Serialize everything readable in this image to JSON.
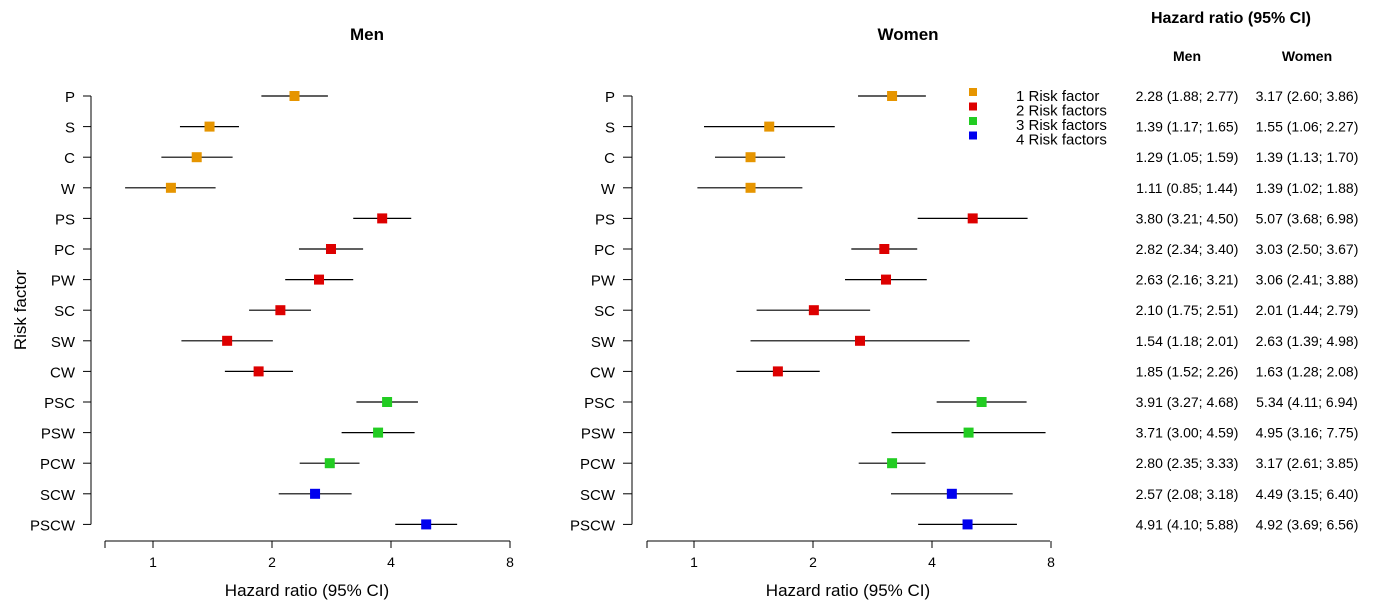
{
  "chart_data": {
    "type": "forest",
    "ylabel": "Risk factor",
    "xlabel": "Hazard ratio (95% CI)",
    "x_scale": "log",
    "x_ticks": [
      1,
      2,
      4,
      8
    ],
    "x_tick_labels": [
      "1",
      "2",
      "4",
      "8"
    ],
    "xlim": [
      0.6,
      8
    ],
    "categories": [
      "P",
      "S",
      "C",
      "W",
      "PS",
      "PC",
      "PW",
      "SC",
      "SW",
      "CW",
      "PSC",
      "PSW",
      "PCW",
      "SCW",
      "PSCW"
    ],
    "group_index": [
      0,
      0,
      0,
      0,
      1,
      1,
      1,
      1,
      1,
      1,
      2,
      2,
      2,
      3,
      3
    ],
    "legend": {
      "position": "top-right of Women panel",
      "entries": [
        {
          "label": "1 Risk factor",
          "color": "#E69500"
        },
        {
          "label": "2 Risk factors",
          "color": "#DD0000"
        },
        {
          "label": "3 Risk factors",
          "color": "#22CC22"
        },
        {
          "label": "4 Risk factors",
          "color": "#0000EE"
        }
      ]
    },
    "panels": [
      {
        "title": "Men",
        "rows": [
          {
            "hr": 2.28,
            "lo": 1.88,
            "hi": 2.77
          },
          {
            "hr": 1.39,
            "lo": 1.17,
            "hi": 1.65
          },
          {
            "hr": 1.29,
            "lo": 1.05,
            "hi": 1.59
          },
          {
            "hr": 1.11,
            "lo": 0.85,
            "hi": 1.44
          },
          {
            "hr": 3.8,
            "lo": 3.21,
            "hi": 4.5
          },
          {
            "hr": 2.82,
            "lo": 2.34,
            "hi": 3.4
          },
          {
            "hr": 2.63,
            "lo": 2.16,
            "hi": 3.21
          },
          {
            "hr": 2.1,
            "lo": 1.75,
            "hi": 2.51
          },
          {
            "hr": 1.54,
            "lo": 1.18,
            "hi": 2.01
          },
          {
            "hr": 1.85,
            "lo": 1.52,
            "hi": 2.26
          },
          {
            "hr": 3.91,
            "lo": 3.27,
            "hi": 4.68
          },
          {
            "hr": 3.71,
            "lo": 3.0,
            "hi": 4.59
          },
          {
            "hr": 2.8,
            "lo": 2.35,
            "hi": 3.33
          },
          {
            "hr": 2.57,
            "lo": 2.08,
            "hi": 3.18
          },
          {
            "hr": 4.91,
            "lo": 4.1,
            "hi": 5.88
          }
        ]
      },
      {
        "title": "Women",
        "rows": [
          {
            "hr": 3.17,
            "lo": 2.6,
            "hi": 3.86
          },
          {
            "hr": 1.55,
            "lo": 1.06,
            "hi": 2.27
          },
          {
            "hr": 1.39,
            "lo": 1.13,
            "hi": 1.7
          },
          {
            "hr": 1.39,
            "lo": 1.02,
            "hi": 1.88
          },
          {
            "hr": 5.07,
            "lo": 3.68,
            "hi": 6.98
          },
          {
            "hr": 3.03,
            "lo": 2.5,
            "hi": 3.67
          },
          {
            "hr": 3.06,
            "lo": 2.41,
            "hi": 3.88
          },
          {
            "hr": 2.01,
            "lo": 1.44,
            "hi": 2.79
          },
          {
            "hr": 2.63,
            "lo": 1.39,
            "hi": 4.98
          },
          {
            "hr": 1.63,
            "lo": 1.28,
            "hi": 2.08
          },
          {
            "hr": 5.34,
            "lo": 4.11,
            "hi": 6.94
          },
          {
            "hr": 4.95,
            "lo": 3.16,
            "hi": 7.75
          },
          {
            "hr": 3.17,
            "lo": 2.61,
            "hi": 3.85
          },
          {
            "hr": 4.49,
            "lo": 3.15,
            "hi": 6.4
          },
          {
            "hr": 4.92,
            "lo": 3.69,
            "hi": 6.56
          }
        ]
      }
    ],
    "table": {
      "title": "Hazard ratio (95% CI)",
      "columns": [
        "Men",
        "Women"
      ],
      "rows": [
        [
          "2.28 (1.88; 2.77)",
          "3.17 (2.60; 3.86)"
        ],
        [
          "1.39 (1.17; 1.65)",
          "1.55 (1.06; 2.27)"
        ],
        [
          "1.29 (1.05; 1.59)",
          "1.39 (1.13; 1.70)"
        ],
        [
          "1.11 (0.85; 1.44)",
          "1.39 (1.02; 1.88)"
        ],
        [
          "3.80 (3.21; 4.50)",
          "5.07 (3.68; 6.98)"
        ],
        [
          "2.82 (2.34; 3.40)",
          "3.03 (2.50; 3.67)"
        ],
        [
          "2.63 (2.16; 3.21)",
          "3.06 (2.41; 3.88)"
        ],
        [
          "2.10 (1.75; 2.51)",
          "2.01 (1.44; 2.79)"
        ],
        [
          "1.54 (1.18; 2.01)",
          "2.63 (1.39; 4.98)"
        ],
        [
          "1.85 (1.52; 2.26)",
          "1.63 (1.28; 2.08)"
        ],
        [
          "3.91 (3.27; 4.68)",
          "5.34 (4.11; 6.94)"
        ],
        [
          "3.71 (3.00; 4.59)",
          "4.95 (3.16; 7.75)"
        ],
        [
          "2.80 (2.35; 3.33)",
          "3.17 (2.61; 3.85)"
        ],
        [
          "2.57 (2.08; 3.18)",
          "4.49 (3.15; 6.40)"
        ],
        [
          "4.91 (4.10; 5.88)",
          "4.92 (3.69; 6.56)"
        ]
      ]
    }
  }
}
